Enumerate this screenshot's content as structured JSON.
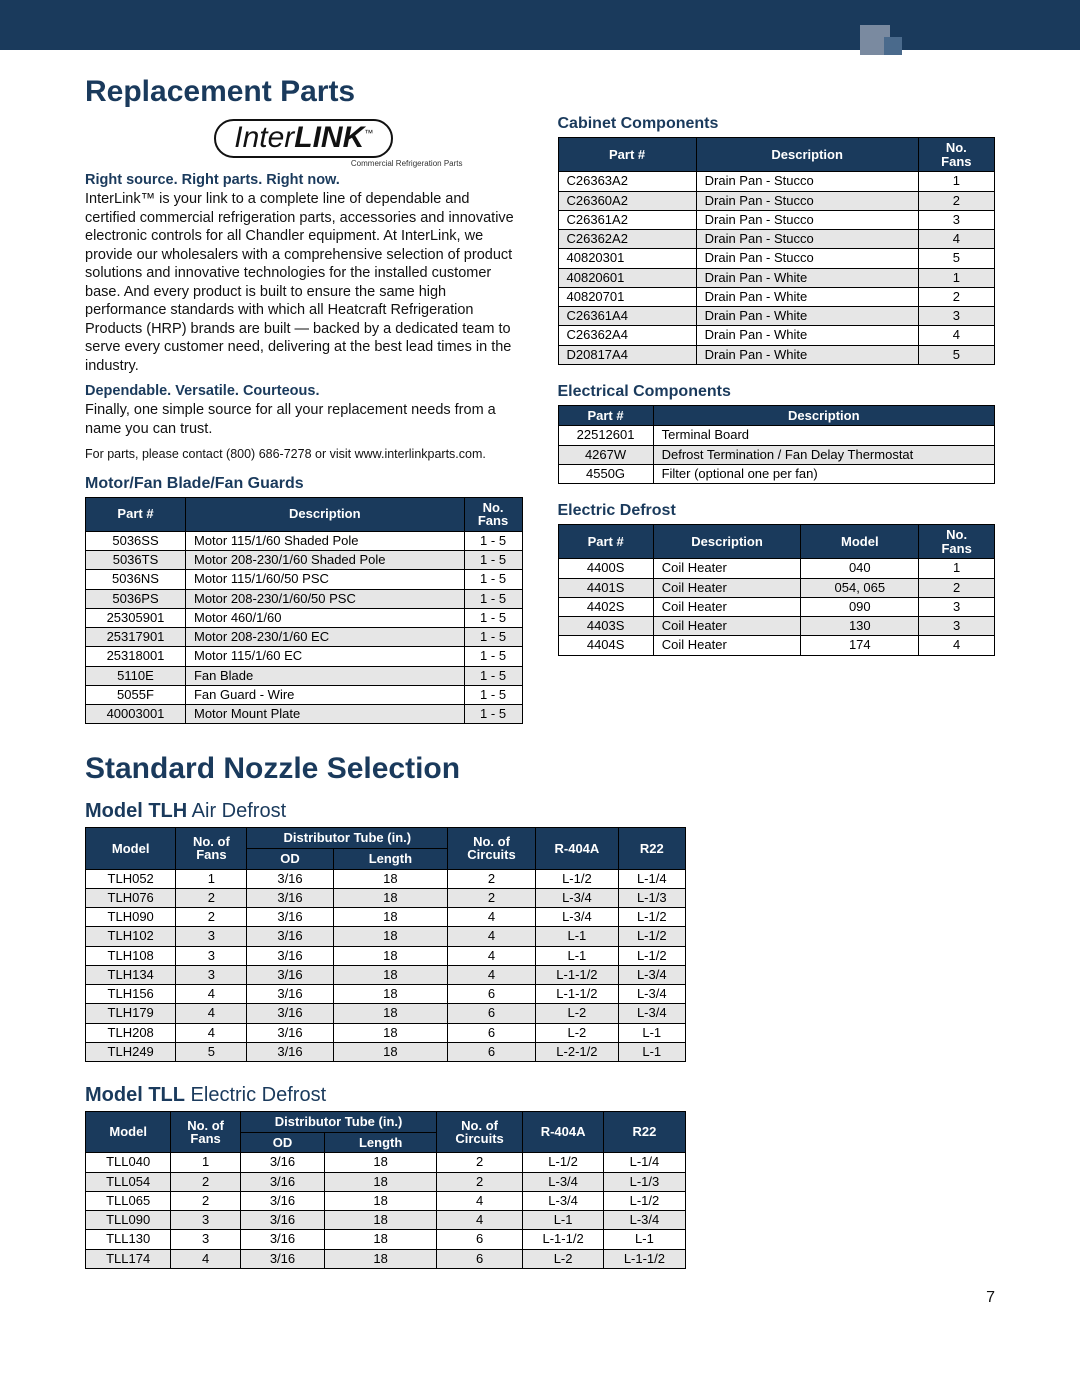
{
  "page_number": "7",
  "colors": {
    "navy": "#1a3a5c",
    "alt_row": "#e6e6e6",
    "text": "#111111"
  },
  "header": {
    "h1_replacement": "Replacement Parts",
    "h1_nozzle": "Standard Nozzle Selection"
  },
  "logo": {
    "prefix": "Inter",
    "suffix": "LINK",
    "sub": "Commercial Refrigeration Parts"
  },
  "intro": {
    "tagline": "Right source. Right parts. Right now.",
    "p1": "InterLink™ is your link to a complete line of dependable and certified commercial refrigeration parts, accessories and innovative electronic controls for all Chandler equipment. At InterLink, we provide our wholesalers with a comprehensive selection of product solutions and innovative technologies for the installed customer base. And every product is built to ensure the same high performance standards with which all Heatcraft Refrigeration Products (HRP) brands are built — backed by a dedicated team to serve every customer need, delivering at the best lead times in the industry.",
    "sub2": "Dependable. Versatile. Courteous.",
    "p2": "Finally, one simple source for all your replacement needs from a name you can trust.",
    "contact": "For parts, please contact (800) 686-7278 or visit www.interlinkparts.com."
  },
  "tables": {
    "motor": {
      "title": "Motor/Fan Blade/Fan Guards",
      "headers": [
        "Part #",
        "Description",
        "No.\nFans"
      ],
      "rows": [
        [
          "5036SS",
          "Motor 115/1/60 Shaded Pole",
          "1 - 5"
        ],
        [
          "5036TS",
          "Motor 208-230/1/60 Shaded Pole",
          "1 - 5"
        ],
        [
          "5036NS",
          "Motor 115/1/60/50 PSC",
          "1 - 5"
        ],
        [
          "5036PS",
          "Motor 208-230/1/60/50 PSC",
          "1 - 5"
        ],
        [
          "25305901",
          "Motor 460/1/60",
          "1 - 5"
        ],
        [
          "25317901",
          "Motor 208-230/1/60 EC",
          "1 - 5"
        ],
        [
          "25318001",
          "Motor 115/1/60 EC",
          "1 - 5"
        ],
        [
          "5110E",
          "Fan Blade",
          "1 - 5"
        ],
        [
          "5055F",
          "Fan Guard - Wire",
          "1 - 5"
        ],
        [
          "40003001",
          "Motor Mount Plate",
          "1 - 5"
        ]
      ]
    },
    "cabinet": {
      "title": "Cabinet Components",
      "headers": [
        "Part #",
        "Description",
        "No.\nFans"
      ],
      "rows": [
        [
          "C26363A2",
          "Drain Pan - Stucco",
          "1"
        ],
        [
          "C26360A2",
          "Drain Pan - Stucco",
          "2"
        ],
        [
          "C26361A2",
          "Drain Pan - Stucco",
          "3"
        ],
        [
          "C26362A2",
          "Drain Pan - Stucco",
          "4"
        ],
        [
          "40820301",
          "Drain Pan - Stucco",
          "5"
        ],
        [
          "40820601",
          "Drain Pan - White",
          "1"
        ],
        [
          "40820701",
          "Drain Pan - White",
          "2"
        ],
        [
          "C26361A4",
          "Drain Pan - White",
          "3"
        ],
        [
          "C26362A4",
          "Drain Pan - White",
          "4"
        ],
        [
          "D20817A4",
          "Drain Pan - White",
          "5"
        ]
      ]
    },
    "electrical": {
      "title": "Electrical Components",
      "headers": [
        "Part #",
        "Description"
      ],
      "rows": [
        [
          "22512601",
          "Terminal Board"
        ],
        [
          "4267W",
          "Defrost Termination / Fan Delay Thermostat"
        ],
        [
          "4550G",
          "Filter (optional one per fan)"
        ]
      ]
    },
    "edefrost": {
      "title": "Electric Defrost",
      "headers": [
        "Part #",
        "Description",
        "Model",
        "No.\nFans"
      ],
      "rows": [
        [
          "4400S",
          "Coil Heater",
          "040",
          "1"
        ],
        [
          "4401S",
          "Coil Heater",
          "054, 065",
          "2"
        ],
        [
          "4402S",
          "Coil Heater",
          "090",
          "3"
        ],
        [
          "4403S",
          "Coil Heater",
          "130",
          "3"
        ],
        [
          "4404S",
          "Coil Heater",
          "174",
          "4"
        ]
      ]
    },
    "tlh": {
      "title_strong": "Model TLH",
      "title_light": " Air Defrost",
      "headers": {
        "model": "Model",
        "fans": "No. of\nFans",
        "dist": "Distributor Tube (in.)",
        "od": "OD",
        "length": "Length",
        "circuits": "No. of\nCircuits",
        "r404a": "R-404A",
        "r22": "R22"
      },
      "rows": [
        [
          "TLH052",
          "1",
          "3/16",
          "18",
          "2",
          "L-1/2",
          "L-1/4"
        ],
        [
          "TLH076",
          "2",
          "3/16",
          "18",
          "2",
          "L-3/4",
          "L-1/3"
        ],
        [
          "TLH090",
          "2",
          "3/16",
          "18",
          "4",
          "L-3/4",
          "L-1/2"
        ],
        [
          "TLH102",
          "3",
          "3/16",
          "18",
          "4",
          "L-1",
          "L-1/2"
        ],
        [
          "TLH108",
          "3",
          "3/16",
          "18",
          "4",
          "L-1",
          "L-1/2"
        ],
        [
          "TLH134",
          "3",
          "3/16",
          "18",
          "4",
          "L-1-1/2",
          "L-3/4"
        ],
        [
          "TLH156",
          "4",
          "3/16",
          "18",
          "6",
          "L-1-1/2",
          "L-3/4"
        ],
        [
          "TLH179",
          "4",
          "3/16",
          "18",
          "6",
          "L-2",
          "L-3/4"
        ],
        [
          "TLH208",
          "4",
          "3/16",
          "18",
          "6",
          "L-2",
          "L-1"
        ],
        [
          "TLH249",
          "5",
          "3/16",
          "18",
          "6",
          "L-2-1/2",
          "L-1"
        ]
      ]
    },
    "tll": {
      "title_strong": "Model TLL",
      "title_light": " Electric Defrost",
      "rows": [
        [
          "TLL040",
          "1",
          "3/16",
          "18",
          "2",
          "L-1/2",
          "L-1/4"
        ],
        [
          "TLL054",
          "2",
          "3/16",
          "18",
          "2",
          "L-3/4",
          "L-1/3"
        ],
        [
          "TLL065",
          "2",
          "3/16",
          "18",
          "4",
          "L-3/4",
          "L-1/2"
        ],
        [
          "TLL090",
          "3",
          "3/16",
          "18",
          "4",
          "L-1",
          "L-3/4"
        ],
        [
          "TLL130",
          "3",
          "3/16",
          "18",
          "6",
          "L-1-1/2",
          "L-1"
        ],
        [
          "TLL174",
          "4",
          "3/16",
          "18",
          "6",
          "L-2",
          "L-1-1/2"
        ]
      ]
    }
  }
}
